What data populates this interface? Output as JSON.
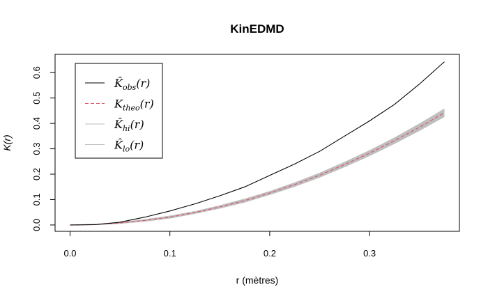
{
  "chart_data": {
    "type": "line",
    "title": "KinEDMD",
    "xlabel": "r (mètres)",
    "ylabel": "K(r)",
    "xlim": [
      -0.015,
      0.39
    ],
    "ylim": [
      -0.025,
      0.672
    ],
    "x_ticks": [
      0.0,
      0.1,
      0.2,
      0.3
    ],
    "x_tick_labels": [
      "0.0",
      "0.1",
      "0.2",
      "0.3"
    ],
    "y_ticks": [
      0.0,
      0.1,
      0.2,
      0.3,
      0.4,
      0.5,
      0.6
    ],
    "y_tick_labels": [
      "0.0",
      "0.1",
      "0.2",
      "0.3",
      "0.4",
      "0.5",
      "0.6"
    ],
    "legend_position": "top-left",
    "series": [
      {
        "name": "K̂obs(r)",
        "label_main": "K̂",
        "label_sub": "obs",
        "label_tail": "(r)",
        "color": "#000000",
        "dash": "solid",
        "x": [
          0.0,
          0.025,
          0.05,
          0.075,
          0.1,
          0.125,
          0.15,
          0.175,
          0.2,
          0.225,
          0.25,
          0.275,
          0.3,
          0.325,
          0.35,
          0.375
        ],
        "y": [
          0.0,
          0.001,
          0.011,
          0.031,
          0.055,
          0.083,
          0.115,
          0.15,
          0.195,
          0.24,
          0.29,
          0.35,
          0.41,
          0.475,
          0.555,
          0.643
        ]
      },
      {
        "name": "Ktheo(r)",
        "label_main": "K",
        "label_sub": "theo",
        "label_tail": "(r)",
        "color": "#DF536B",
        "dash": "dashed",
        "x": [
          0.0,
          0.025,
          0.05,
          0.075,
          0.1,
          0.125,
          0.15,
          0.175,
          0.2,
          0.225,
          0.25,
          0.275,
          0.3,
          0.325,
          0.35,
          0.375
        ],
        "y": [
          0.0,
          0.002,
          0.008,
          0.018,
          0.031,
          0.049,
          0.071,
          0.096,
          0.126,
          0.159,
          0.196,
          0.238,
          0.283,
          0.332,
          0.385,
          0.442
        ]
      },
      {
        "name": "K̂hi(r)",
        "label_main": "K̂",
        "label_sub": "hi",
        "label_tail": "(r)",
        "color": "#BEBEBE",
        "dash": "solid",
        "x": [
          0.0,
          0.025,
          0.05,
          0.075,
          0.1,
          0.125,
          0.15,
          0.175,
          0.2,
          0.225,
          0.25,
          0.275,
          0.3,
          0.325,
          0.35,
          0.375
        ],
        "y": [
          0.0,
          0.003,
          0.01,
          0.021,
          0.035,
          0.053,
          0.076,
          0.102,
          0.132,
          0.166,
          0.204,
          0.247,
          0.293,
          0.343,
          0.398,
          0.457
        ]
      },
      {
        "name": "K̂lo(r)",
        "label_main": "K̂",
        "label_sub": "lo",
        "label_tail": "(r)",
        "color": "#BEBEBE",
        "dash": "solid",
        "x": [
          0.0,
          0.025,
          0.05,
          0.075,
          0.1,
          0.125,
          0.15,
          0.175,
          0.2,
          0.225,
          0.25,
          0.275,
          0.3,
          0.325,
          0.35,
          0.375
        ],
        "y": [
          0.0,
          0.001,
          0.006,
          0.015,
          0.027,
          0.045,
          0.066,
          0.09,
          0.12,
          0.152,
          0.188,
          0.229,
          0.273,
          0.321,
          0.372,
          0.427
        ]
      }
    ],
    "envelope_fill": "#BEBEBE"
  }
}
